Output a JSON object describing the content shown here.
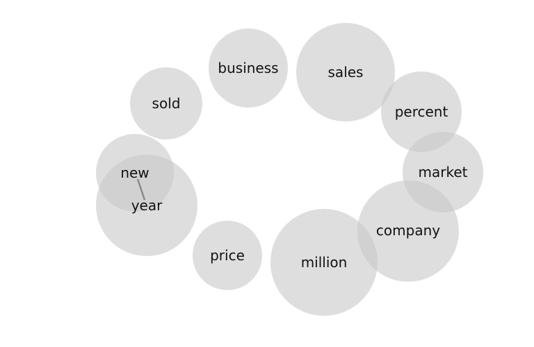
{
  "diagram": {
    "type": "word-bubble-cloud",
    "bubble_color": "#c8c8c8",
    "label_color": "#111111",
    "words": [
      {
        "label": "business"
      },
      {
        "label": "sales"
      },
      {
        "label": "sold"
      },
      {
        "label": "percent"
      },
      {
        "label": "market"
      },
      {
        "label": "new"
      },
      {
        "label": "year"
      },
      {
        "label": "company"
      },
      {
        "label": "price"
      },
      {
        "label": "million"
      }
    ],
    "links": [
      {
        "from": "new",
        "to": "year"
      }
    ]
  }
}
